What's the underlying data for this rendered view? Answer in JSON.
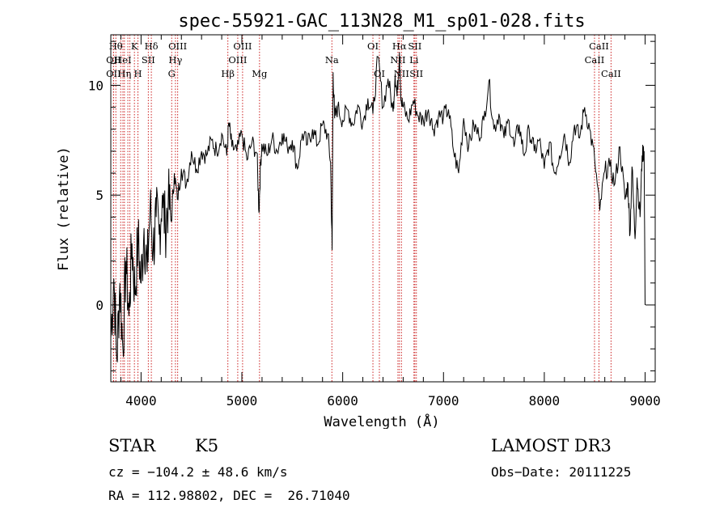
{
  "chart_data": {
    "type": "line",
    "title": "spec-55921-GAC_113N28_M1_sp01-028.fits",
    "xlabel": "Wavelength (Å)",
    "ylabel": "Flux (relative)",
    "xlim": [
      3700,
      9100
    ],
    "ylim": [
      -3.5,
      12.3
    ],
    "x_ticks": [
      4000,
      5000,
      6000,
      7000,
      8000,
      9000
    ],
    "x_tick_labels": [
      "4000",
      "5000",
      "6000",
      "7000",
      "8000",
      "9000"
    ],
    "y_ticks": [
      0,
      5,
      10
    ],
    "y_tick_labels": [
      "0",
      "5",
      "10"
    ],
    "grid": false,
    "series": [
      {
        "name": "spectrum",
        "x": [
          3700,
          3730,
          3760,
          3790,
          3820,
          3850,
          3880,
          3910,
          3940,
          3970,
          4000,
          4030,
          4060,
          4090,
          4120,
          4150,
          4180,
          4210,
          4240,
          4270,
          4300,
          4330,
          4360,
          4400,
          4450,
          4500,
          4550,
          4600,
          4650,
          4700,
          4750,
          4800,
          4850,
          4870,
          4900,
          4950,
          5000,
          5050,
          5100,
          5150,
          5170,
          5185,
          5200,
          5250,
          5300,
          5350,
          5400,
          5450,
          5500,
          5550,
          5600,
          5650,
          5700,
          5750,
          5800,
          5850,
          5880,
          5895,
          5905,
          5920,
          5950,
          6000,
          6050,
          6100,
          6150,
          6200,
          6250,
          6300,
          6350,
          6400,
          6450,
          6500,
          6520,
          6540,
          6563,
          6580,
          6600,
          6650,
          6700,
          6750,
          6800,
          6850,
          6900,
          6950,
          7000,
          7050,
          7100,
          7150,
          7200,
          7250,
          7300,
          7350,
          7400,
          7450,
          7500,
          7550,
          7600,
          7650,
          7700,
          7750,
          7800,
          7850,
          7900,
          7950,
          8000,
          8050,
          8100,
          8150,
          8200,
          8250,
          8300,
          8350,
          8400,
          8450,
          8500,
          8550,
          8600,
          8650,
          8700,
          8750,
          8800,
          8830,
          8850,
          8870,
          8900,
          8920,
          8950,
          8970,
          8990,
          9000
        ],
        "y": [
          -1.5,
          1.2,
          -2.5,
          1.0,
          -2.0,
          2.0,
          -0.5,
          2.8,
          0.5,
          3.0,
          1.0,
          3.5,
          1.5,
          4.5,
          2.5,
          4.0,
          3.2,
          5.0,
          3.5,
          4.8,
          3.8,
          6.0,
          4.8,
          6.2,
          5.5,
          7.0,
          6.2,
          7.0,
          6.8,
          7.5,
          7.0,
          7.8,
          6.8,
          8.3,
          7.2,
          7.0,
          7.8,
          6.6,
          7.4,
          6.9,
          4.2,
          6.5,
          7.3,
          6.8,
          7.6,
          7.0,
          7.8,
          7.2,
          7.5,
          6.2,
          7.8,
          7.3,
          8.0,
          7.3,
          8.2,
          7.8,
          6.5,
          2.5,
          10.6,
          8.5,
          9.0,
          8.4,
          8.9,
          8.2,
          9.1,
          8.3,
          9.4,
          8.7,
          11.3,
          9.0,
          10.3,
          8.8,
          10.5,
          9.5,
          11.5,
          9.3,
          9.0,
          8.4,
          9.3,
          8.6,
          8.4,
          8.9,
          8.0,
          8.6,
          8.6,
          8.9,
          7.0,
          6.0,
          8.5,
          7.2,
          8.2,
          7.7,
          8.4,
          10.2,
          8.0,
          8.7,
          7.6,
          8.4,
          7.2,
          8.2,
          6.8,
          8.0,
          7.0,
          7.5,
          6.2,
          7.4,
          6.0,
          6.8,
          7.8,
          6.5,
          8.2,
          7.6,
          9.0,
          8.0,
          6.6,
          4.3,
          6.1,
          6.3,
          5.5,
          7.2,
          4.8,
          5.5,
          3.2,
          6.3,
          3.0,
          5.8,
          4.0,
          6.8,
          7.0,
          0.0
        ]
      }
    ],
    "line_markers": [
      {
        "wl": 3750,
        "row": 0,
        "label": "Hθ"
      },
      {
        "wl": 3727,
        "row": 1,
        "label": "OII"
      },
      {
        "wl": 3727,
        "row": 2,
        "label": "OII"
      },
      {
        "wl": 3798,
        "row": 0,
        "label": ""
      },
      {
        "wl": 3820,
        "row": 1,
        "label": "HeI"
      },
      {
        "wl": 3835,
        "row": 2,
        "label": "Hη"
      },
      {
        "wl": 3869,
        "row": 0,
        "label": ""
      },
      {
        "wl": 3889,
        "row": 0,
        "label": ""
      },
      {
        "wl": 3934,
        "row": 0,
        "label": "K"
      },
      {
        "wl": 3969,
        "row": 2,
        "label": "H"
      },
      {
        "wl": 4072,
        "row": 1,
        "label": "SII"
      },
      {
        "wl": 4102,
        "row": 0,
        "label": "Hδ"
      },
      {
        "wl": 4304,
        "row": 2,
        "label": "G"
      },
      {
        "wl": 4341,
        "row": 1,
        "label": "Hγ"
      },
      {
        "wl": 4363,
        "row": 0,
        "label": "OIII"
      },
      {
        "wl": 4861,
        "row": 2,
        "label": "Hβ"
      },
      {
        "wl": 4959,
        "row": 1,
        "label": "OIII"
      },
      {
        "wl": 5007,
        "row": 0,
        "label": "OIII"
      },
      {
        "wl": 5175,
        "row": 2,
        "label": "Mg"
      },
      {
        "wl": 5893,
        "row": 1,
        "label": "Na"
      },
      {
        "wl": 6300,
        "row": 0,
        "label": "OI"
      },
      {
        "wl": 6364,
        "row": 2,
        "label": "OI"
      },
      {
        "wl": 6548,
        "row": 1,
        "label": "NII"
      },
      {
        "wl": 6563,
        "row": 0,
        "label": "Hα"
      },
      {
        "wl": 6583,
        "row": 2,
        "label": "NII"
      },
      {
        "wl": 6707,
        "row": 1,
        "label": "Li"
      },
      {
        "wl": 6716,
        "row": 0,
        "label": "SII"
      },
      {
        "wl": 6731,
        "row": 2,
        "label": "SII"
      },
      {
        "wl": 8498,
        "row": 1,
        "label": "CaII"
      },
      {
        "wl": 8542,
        "row": 0,
        "label": "CaII"
      },
      {
        "wl": 8662,
        "row": 2,
        "label": "CaII"
      }
    ]
  },
  "info": {
    "class": "STAR",
    "subclass": "K5",
    "survey": "LAMOST DR3",
    "cz": "cz = −104.2 ± 48.6 km/s",
    "obs_date": "Obs−Date: 20111225",
    "coords": "RA = 112.98802, DEC =  26.71040"
  },
  "colors": {
    "spectrum": "#000000",
    "marker": "#cc2222"
  }
}
